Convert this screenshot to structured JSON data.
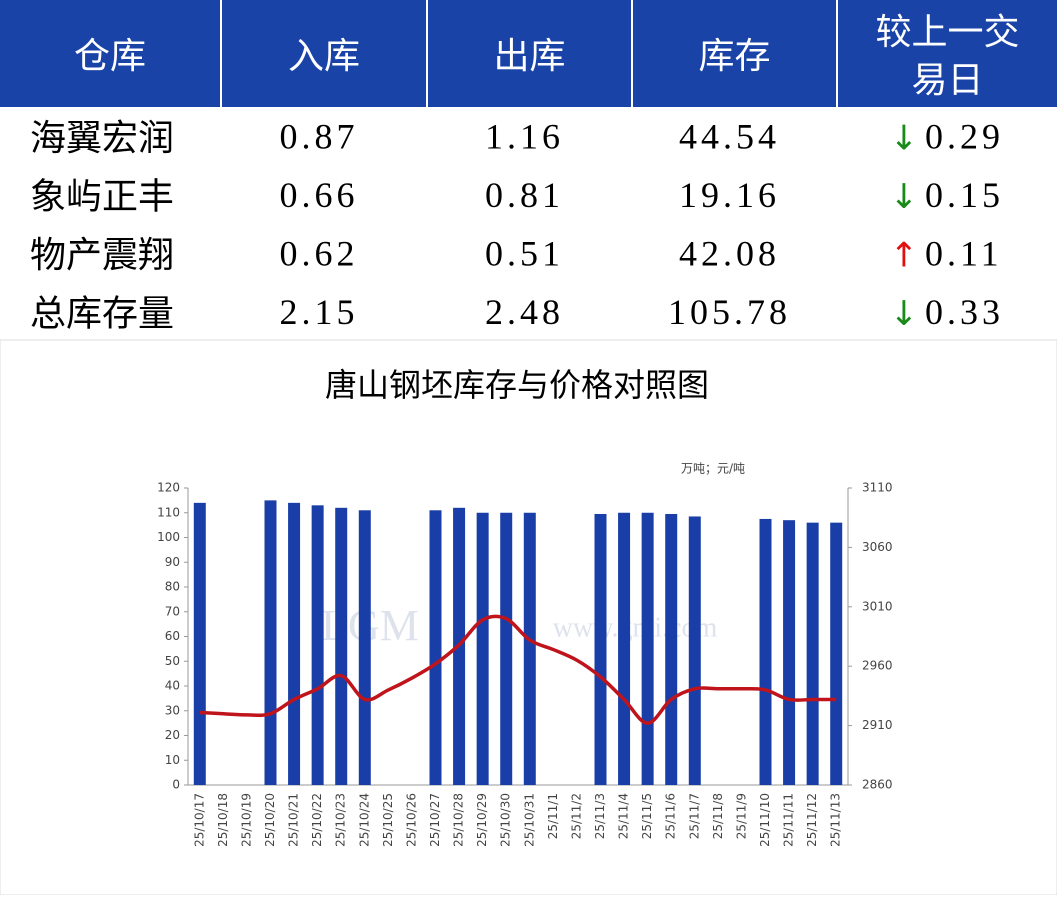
{
  "table": {
    "header": [
      "仓库",
      "入库",
      "出库",
      "库存",
      "较上一交易日"
    ],
    "rows": [
      [
        "海翼宏润",
        "0.87",
        "1.16",
        "44.54",
        {
          "arrow": "↓",
          "value": "0.29",
          "color": "#1a8a1a"
        }
      ],
      [
        "象屿正丰",
        "0.66",
        "0.81",
        "19.16",
        {
          "arrow": "↓",
          "value": "0.15",
          "color": "#1a8a1a"
        }
      ],
      [
        "物产震翔",
        "0.62",
        "0.51",
        "42.08",
        {
          "arrow": "↑",
          "value": "0.11",
          "color": "#e01010"
        }
      ],
      [
        "总库存量",
        "2.15",
        "2.48",
        "105.78",
        {
          "arrow": "↓",
          "value": "0.33",
          "color": "#1a8a1a"
        }
      ]
    ]
  },
  "chart_data": {
    "type": "bar-line",
    "title": "唐山钢坯库存与价格对照图",
    "unit_label": "万吨；元/吨",
    "watermark": [
      "LGM",
      "www.gmi.com"
    ],
    "categories": [
      "25/10/17",
      "25/10/18",
      "25/10/19",
      "25/10/20",
      "25/10/21",
      "25/10/22",
      "25/10/23",
      "25/10/24",
      "25/10/25",
      "25/10/26",
      "25/10/27",
      "25/10/28",
      "25/10/29",
      "25/10/30",
      "25/10/31",
      "25/11/1",
      "25/11/2",
      "25/11/3",
      "25/11/4",
      "25/11/5",
      "25/11/6",
      "25/11/7",
      "25/11/8",
      "25/11/9",
      "25/11/10",
      "25/11/11",
      "25/11/12",
      "25/11/13"
    ],
    "series": [
      {
        "kind": "bar",
        "color": "#1a3ea8",
        "values": [
          114,
          null,
          null,
          115,
          114,
          113,
          112,
          111,
          null,
          null,
          111,
          112,
          110,
          110,
          110,
          null,
          null,
          109.5,
          110,
          110,
          109.5,
          108.5,
          null,
          null,
          107.5,
          107,
          106,
          106
        ]
      },
      {
        "kind": "line",
        "axis": "y2",
        "color": "#c0141c",
        "values": [
          2921,
          2920,
          2919,
          2920,
          2932,
          2941,
          2952,
          2932,
          2940,
          2950,
          2962,
          2978,
          2999,
          3000,
          2982,
          2974,
          2965,
          2951,
          2932,
          2912,
          2932,
          2941,
          2941,
          2941,
          2940,
          2932,
          2932,
          2932
        ]
      }
    ],
    "ylim": [
      0,
      120
    ],
    "yticks": [
      0,
      10,
      20,
      30,
      40,
      50,
      60,
      70,
      80,
      90,
      100,
      110,
      120
    ],
    "y2lim": [
      2860,
      3110
    ],
    "y2ticks": [
      2860,
      2910,
      2960,
      3010,
      3060,
      3110
    ]
  }
}
